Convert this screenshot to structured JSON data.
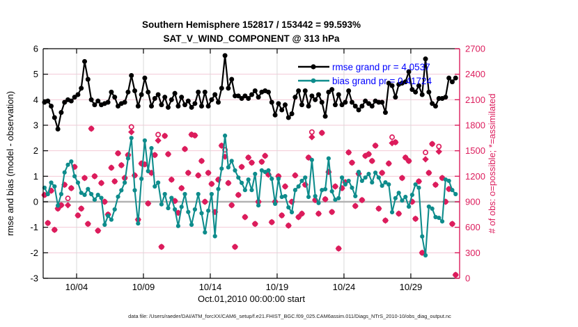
{
  "chart_data": {
    "type": "line",
    "title": "Southern Hemisphere 152817 / 153442 = 99.593%",
    "subtitle": "SAT_V_WIND_COMPONENT @ 313 hPa",
    "xlabel": "Oct.01,2010 00:00:00 start",
    "ylabel_left": "rmse and bias (model - observation)",
    "ylabel_right": "# of obs: o=possible; *=assimilated",
    "footer": "data file: /Users/raeder/DAI/ATM_forcXX/CAM6_setup/f.e21.FHIST_BGC.f09_025.CAM6assim.011/Diags_NTrS_2010-10/obs_diag_output.nc",
    "legend": [
      {
        "series": "rmse",
        "label": "rmse grand pr = 4.0537"
      },
      {
        "series": "bias",
        "label": "bias grand pr = 0.41724"
      }
    ],
    "x_range": [
      1.5,
      32.65
    ],
    "x_ticks": [
      {
        "day": 4,
        "label": "10/04"
      },
      {
        "day": 9,
        "label": "10/09"
      },
      {
        "day": 14,
        "label": "10/14"
      },
      {
        "day": 19,
        "label": "10/19"
      },
      {
        "day": 24,
        "label": "10/24"
      },
      {
        "day": 29,
        "label": "10/29"
      }
    ],
    "y_left_range": [
      -3,
      6
    ],
    "y_left_ticks": [
      -3,
      -2,
      -1,
      0,
      1,
      2,
      3,
      4,
      5,
      6
    ],
    "y_right_range": [
      0,
      2700
    ],
    "y_right_ticks": [
      0,
      300,
      600,
      900,
      1200,
      1500,
      1800,
      2100,
      2400,
      2700
    ],
    "x_start_day": 1.6,
    "x_step_days": 0.25,
    "series": [
      {
        "name": "rmse",
        "axis": "left",
        "marker": "filled-circle",
        "color": "#000000",
        "values": [
          3.9,
          3.95,
          3.75,
          3.3,
          2.85,
          3.5,
          3.9,
          4.0,
          3.95,
          4.1,
          4.2,
          4.45,
          5.5,
          4.8,
          4.0,
          3.8,
          3.95,
          3.8,
          3.85,
          3.9,
          4.3,
          4.1,
          3.75,
          3.85,
          3.9,
          4.3,
          4.95,
          4.35,
          3.75,
          4.2,
          4.85,
          4.3,
          3.75,
          4.05,
          4.2,
          3.8,
          4.1,
          3.7,
          4.0,
          4.25,
          3.75,
          4.1,
          3.8,
          3.95,
          3.7,
          3.85,
          4.3,
          3.75,
          4.3,
          3.75,
          4.0,
          4.2,
          3.9,
          4.45,
          5.73,
          4.45,
          4.8,
          4.15,
          4.15,
          4.05,
          4.15,
          4.05,
          4.2,
          4.35,
          4.1,
          4.3,
          4.35,
          4.3,
          3.9,
          3.4,
          3.85,
          3.6,
          3.8,
          3.3,
          3.45,
          4.1,
          4.35,
          3.8,
          4.35,
          3.75,
          4.15,
          4.0,
          4.2,
          3.9,
          3.35,
          4.3,
          4.4,
          3.8,
          4.2,
          3.8,
          3.9,
          4.35,
          3.9,
          3.75,
          3.6,
          3.75,
          3.95,
          3.85,
          3.75,
          3.95,
          3.9,
          3.9,
          3.5,
          4.65,
          4.55,
          4.1,
          4.6,
          4.65,
          4.7,
          5.1,
          4.4,
          4.3,
          4.55,
          4.2,
          5.6,
          4.3,
          3.85,
          3.75,
          4.05,
          4.05,
          4.1,
          4.85,
          4.7,
          4.85
        ]
      },
      {
        "name": "bias",
        "axis": "left",
        "marker": "filled-circle",
        "color": "#0e8c8c",
        "values": [
          0.55,
          0.3,
          0.75,
          0.6,
          -0.15,
          0.3,
          1.15,
          1.45,
          1.58,
          1.0,
          0.75,
          0.35,
          0.27,
          0.5,
          0.3,
          0.08,
          0.27,
          0.15,
          -0.9,
          -0.55,
          -0.7,
          -0.3,
          0.2,
          0.45,
          0.75,
          1.7,
          2.5,
          0.45,
          -0.85,
          0.9,
          2.4,
          1.2,
          2.1,
          0.6,
          0.75,
          -0.1,
          0.3,
          -0.25,
          0.15,
          -0.3,
          -0.95,
          -0.2,
          0.3,
          -0.4,
          -0.9,
          -0.3,
          0.3,
          -0.45,
          -1.2,
          -0.35,
          0.3,
          -1.35,
          0.5,
          1.3,
          2.59,
          1.35,
          1.6,
          1.23,
          0.95,
          0.74,
          0.46,
          0.87,
          0.46,
          1.09,
          -0.14,
          1.23,
          1.17,
          1.23,
          0.9,
          -0.08,
          0.9,
          0.19,
          0.22,
          -0.22,
          -0.41,
          0.46,
          0.6,
          0.82,
          0.95,
          0.19,
          1.64,
          0.22,
          -0.05,
          0.46,
          0.49,
          1.7,
          0.41,
          0.08,
          0.14,
          0.95,
          0.68,
          0.82,
          0.55,
          0.22,
          1.17,
          0.82,
          0.95,
          1.09,
          0.76,
          1.14,
          0.95,
          0.63,
          0.76,
          0.68,
          -0.41,
          0.14,
          0.35,
          0.05,
          0.19,
          -0.19,
          0.27,
          0.68,
          0.55,
          -1.36,
          -2.1,
          -0.19,
          -0.27,
          -0.6,
          -0.63,
          -0.77,
          0.87,
          0.82,
          0.46,
          0.3
        ]
      },
      {
        "name": "possible_obs",
        "axis": "right",
        "marker": "open-circle",
        "color": "#dc1c5c",
        "values": [
          980,
          650,
          1030,
          570,
          820,
          860,
          1100,
          940,
          1060,
          1310,
          740,
          820,
          1180,
          640,
          1760,
          1200,
          560,
          1120,
          900,
          750,
          1300,
          1140,
          1470,
          1330,
          1180,
          1450,
          1780,
          1210,
          690,
          1350,
          1340,
          880,
          1240,
          1450,
          1690,
          370,
          1675,
          1460,
          1160,
          910,
          770,
          1060,
          1520,
          1240,
          1690,
          1680,
          1210,
          1380,
          900,
          1240,
          1110,
          780,
          1160,
          1560,
          1510,
          1120,
          860,
          370,
          980,
          1310,
          720,
          1420,
          1360,
          640,
          900,
          1370,
          1440,
          1220,
          660,
          900,
          1200,
          740,
          1080,
          620,
          900,
          1210,
          720,
          760,
          1100,
          1420,
          1720,
          920,
          760,
          1710,
          930,
          1250,
          780,
          1080,
          350,
          1060,
          1130,
          1480,
          1360,
          850,
          1230,
          920,
          1440,
          1460,
          1380,
          1560,
          820,
          1240,
          680,
          1350,
          1660,
          1600,
          760,
          1180,
          1420,
          1380,
          900,
          700,
          1140,
          300,
          1480,
          1240,
          1580,
          1100,
          1550,
          1180,
          900,
          1050,
          640,
          40
        ]
      },
      {
        "name": "assimilated_obs",
        "axis": "right",
        "marker": "asterisk",
        "color": "#dc1c5c",
        "values": [
          980,
          650,
          1030,
          570,
          820,
          860,
          1100,
          860,
          1060,
          1310,
          740,
          820,
          1180,
          640,
          1760,
          1200,
          560,
          1120,
          900,
          750,
          1300,
          1140,
          1470,
          1330,
          1180,
          1450,
          1720,
          1210,
          690,
          1350,
          1340,
          880,
          1240,
          1450,
          1620,
          370,
          1675,
          1460,
          1160,
          910,
          770,
          1060,
          1520,
          1240,
          1690,
          1680,
          1210,
          1380,
          900,
          1240,
          1110,
          780,
          1160,
          1560,
          1430,
          1120,
          860,
          370,
          980,
          1310,
          720,
          1420,
          1360,
          640,
          900,
          1370,
          1440,
          1220,
          660,
          900,
          1200,
          740,
          1080,
          620,
          900,
          1210,
          720,
          760,
          1100,
          1420,
          1660,
          920,
          760,
          1710,
          930,
          1250,
          780,
          1080,
          350,
          1060,
          1130,
          1480,
          1360,
          850,
          1230,
          920,
          1440,
          1460,
          1380,
          1560,
          820,
          1240,
          680,
          1350,
          1590,
          1600,
          760,
          1180,
          1420,
          1380,
          900,
          700,
          1140,
          300,
          1400,
          1240,
          1580,
          1100,
          1490,
          1180,
          900,
          1050,
          640,
          40
        ]
      }
    ],
    "colors": {
      "obs_pink": "#dc1c5c",
      "bias_teal": "#0e8c8c",
      "rmse_black": "#000000",
      "legend_text_blue": "#0000ff",
      "grid_pink": "#f2c9d6",
      "grid_gray": "#d9d9d9",
      "zero_line_gray": "#b3b3b3"
    },
    "grid": true,
    "legend_position": "top-right-inside"
  }
}
